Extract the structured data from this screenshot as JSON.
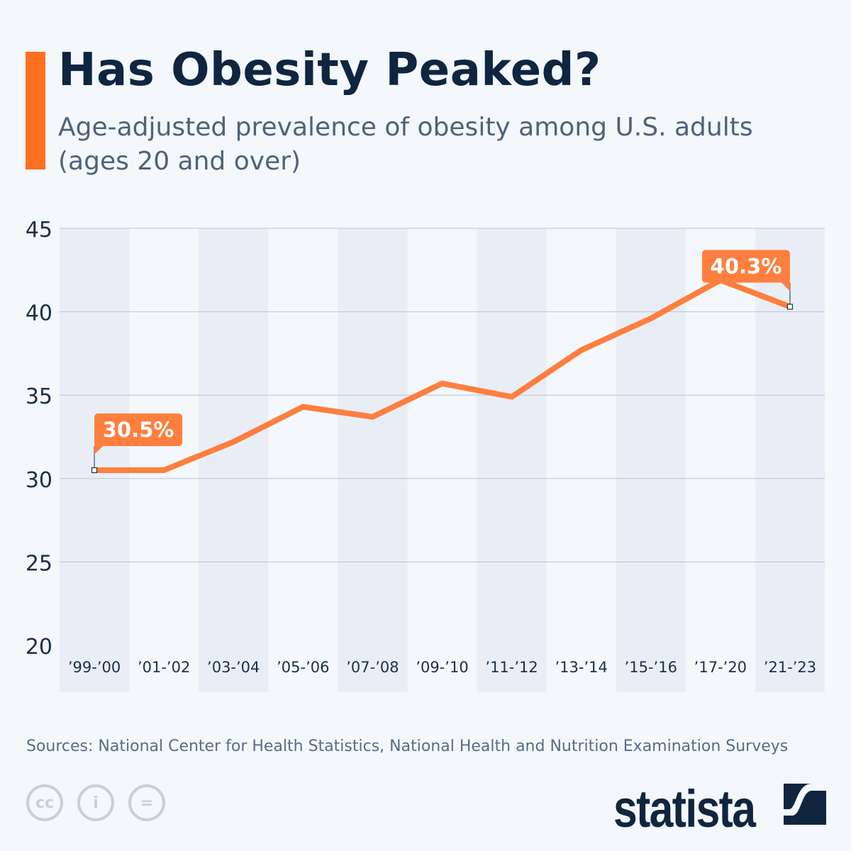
{
  "header": {
    "title": "Has Obesity Peaked?",
    "subtitle": "Age-adjusted prevalence of obesity among U.S. adults (ages 20 and over)"
  },
  "chart_data": {
    "type": "line",
    "title": "Has Obesity Peaked?",
    "subtitle": "Age-adjusted prevalence of obesity among U.S. adults (ages 20 and over)",
    "categories": [
      "’99-’00",
      "’01-’02",
      "’03-’04",
      "’05-’06",
      "’07-’08",
      "’09-’10",
      "’11-’12",
      "’13-’14",
      "’15-’16",
      "’17-’20",
      "’21-’23"
    ],
    "values": [
      30.5,
      30.5,
      32.2,
      34.3,
      33.7,
      35.7,
      34.9,
      37.7,
      39.6,
      41.9,
      40.3
    ],
    "ylim": [
      20,
      45
    ],
    "yticks": [
      20,
      25,
      30,
      35,
      40,
      45
    ],
    "grid": true,
    "annotations": [
      {
        "index": 0,
        "label": "30.5%"
      },
      {
        "index": 10,
        "label": "40.3%"
      }
    ],
    "colors": {
      "line": "#fd7f3f",
      "label_bg": "#fd7f3f",
      "band": "#e9eef6",
      "grid": "#b8c3d0"
    }
  },
  "footer": {
    "source": "Sources: National Center for Health Statistics, National Health and Nutrition Examination Surveys",
    "brand": "statista",
    "license_icons": [
      "cc-icon",
      "attribution-icon",
      "no-derivatives-icon"
    ]
  }
}
